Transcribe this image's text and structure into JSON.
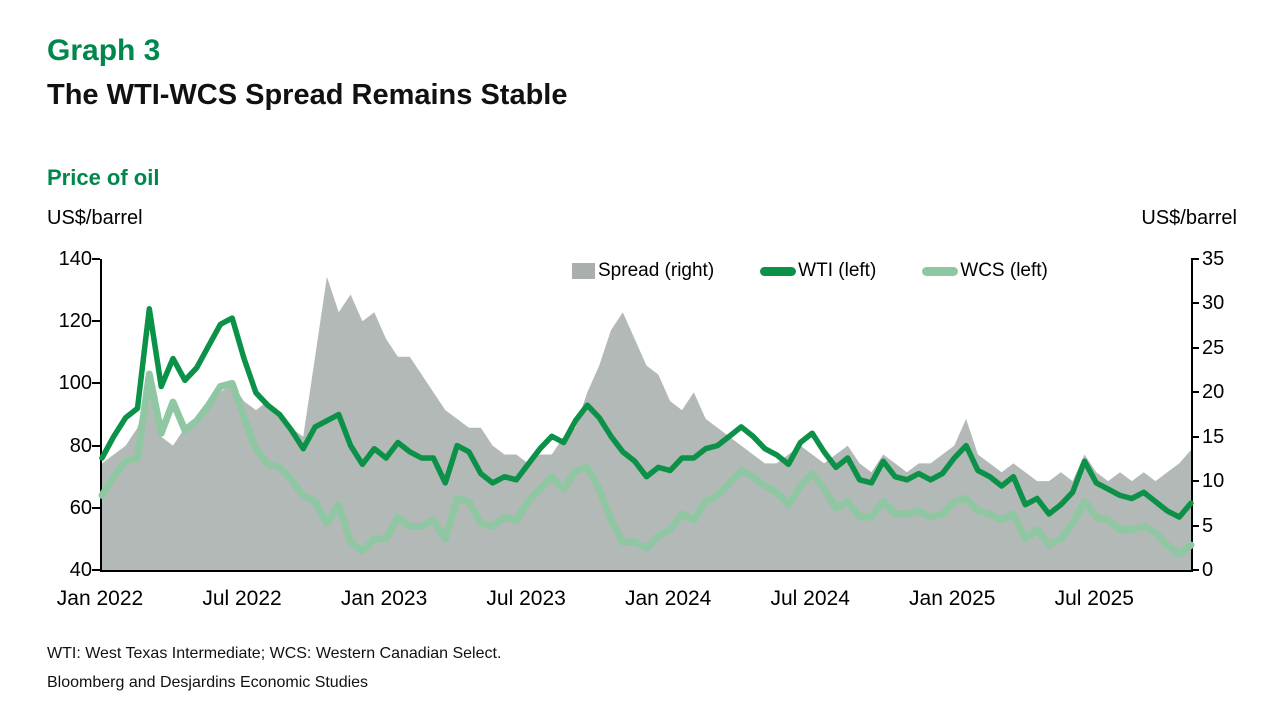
{
  "page": {
    "background": "#ffffff"
  },
  "colors": {
    "title_green": "#00874B",
    "wti_green": "#0B9148",
    "wcs_green": "#8FC7A3",
    "spread_gray": "#B3B9B6",
    "legend_gray_swatch": "#A8AFAC",
    "axis_black": "#000000"
  },
  "header": {
    "eyebrow": "Graph 3",
    "title": "The WTI-WCS Spread Remains Stable"
  },
  "chart_header": {
    "label": "Price of oil",
    "unit_left": "US$/barrel",
    "unit_right": "US$/barrel"
  },
  "footnotes": {
    "line1": "WTI: West Texas Intermediate; WCS: Western Canadian Select.",
    "line2": "Bloomberg and Desjardins Economic Studies"
  },
  "chart_data": {
    "type": "line+area",
    "title": "Price of oil",
    "x_unit": "half-month steps from Jan 2022 to Nov 2025 (2 points per month)",
    "x_range_months": [
      0,
      46
    ],
    "x_tick_months": [
      0,
      6,
      12,
      18,
      24,
      30,
      36,
      42
    ],
    "x_tick_labels": [
      "Jan 2022",
      "Jul 2022",
      "Jan 2023",
      "Jul 2023",
      "Jan 2024",
      "Jul 2024",
      "Jan 2025",
      "Jul 2025"
    ],
    "left_axis": {
      "label": "US$/barrel",
      "min": 40,
      "max": 140,
      "ticks": [
        140,
        120,
        100,
        80,
        60,
        40
      ]
    },
    "right_axis": {
      "label": "US$/barrel",
      "min": 0,
      "max": 35,
      "ticks": [
        35,
        30,
        25,
        20,
        15,
        10,
        5,
        0
      ]
    },
    "legend": [
      {
        "label": "Spread (right)",
        "swatch": "area",
        "color": "#A8AFAC"
      },
      {
        "label": "WTI (left)",
        "swatch": "line",
        "color": "#0B9148"
      },
      {
        "label": "WCS (left)",
        "swatch": "line",
        "color": "#8FC7A3"
      }
    ],
    "series": [
      {
        "name": "Spread (right)",
        "axis": "right",
        "type": "area",
        "color": "#B3B9B6",
        "values": [
          12,
          13,
          14,
          16,
          21,
          15,
          14,
          16,
          17,
          19,
          20,
          21,
          19,
          18,
          19,
          17,
          16,
          15,
          24,
          33,
          29,
          31,
          28,
          29,
          26,
          24,
          24,
          22,
          20,
          18,
          17,
          16,
          16,
          14,
          13,
          13,
          12,
          13,
          13,
          15,
          16,
          20,
          23,
          27,
          29,
          26,
          23,
          22,
          19,
          18,
          20,
          17,
          16,
          15,
          14,
          13,
          12,
          12,
          13,
          14,
          13,
          12,
          13,
          14,
          12,
          11,
          13,
          12,
          11,
          12,
          12,
          13,
          14,
          17,
          13,
          12,
          11,
          12,
          11,
          10,
          10,
          11,
          10,
          13,
          11,
          10,
          11,
          10,
          11,
          10,
          11,
          12,
          13.5
        ]
      },
      {
        "name": "WCS (left)",
        "axis": "left",
        "type": "line",
        "color": "#8FC7A3",
        "values": [
          64,
          70,
          75,
          76,
          103,
          84,
          94,
          85,
          88,
          93,
          99,
          100,
          89,
          79,
          74,
          73,
          69,
          64,
          62,
          55,
          61,
          49,
          46,
          50,
          50,
          57,
          54,
          54,
          56,
          50,
          63,
          62,
          55,
          54,
          57,
          56,
          62,
          66,
          70,
          66,
          72,
          73,
          66,
          56,
          49,
          49,
          47,
          51,
          53,
          58,
          56,
          62,
          64,
          68,
          72,
          70,
          67,
          65,
          61,
          67,
          71,
          66,
          60,
          62,
          57,
          57,
          62,
          58,
          58,
          59,
          57,
          58,
          62,
          63,
          59,
          58,
          56,
          58,
          50,
          53,
          48,
          50,
          55,
          62,
          57,
          56,
          53,
          53,
          54,
          52,
          48,
          45,
          48
        ]
      },
      {
        "name": "WTI (left)",
        "axis": "left",
        "type": "line",
        "color": "#0B9148",
        "values": [
          76,
          83,
          89,
          92,
          124,
          99,
          108,
          101,
          105,
          112,
          119,
          121,
          108,
          97,
          93,
          90,
          85,
          79,
          86,
          88,
          90,
          80,
          74,
          79,
          76,
          81,
          78,
          76,
          76,
          68,
          80,
          78,
          71,
          68,
          70,
          69,
          74,
          79,
          83,
          81,
          88,
          93,
          89,
          83,
          78,
          75,
          70,
          73,
          72,
          76,
          76,
          79,
          80,
          83,
          86,
          83,
          79,
          77,
          74,
          81,
          84,
          78,
          73,
          76,
          69,
          68,
          75,
          70,
          69,
          71,
          69,
          71,
          76,
          80,
          72,
          70,
          67,
          70,
          61,
          63,
          58,
          61,
          65,
          75,
          68,
          66,
          64,
          63,
          65,
          62,
          59,
          57,
          61.5
        ]
      }
    ]
  }
}
